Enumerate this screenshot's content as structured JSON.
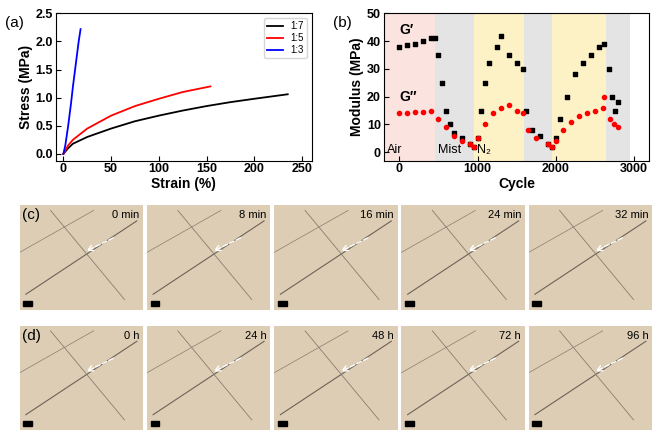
{
  "chart_data": [
    {
      "type": "line",
      "panel_label": "(a)",
      "x_label": "Strain (%)",
      "y_label": "Stress (MPa)",
      "xlim": [
        -8,
        260
      ],
      "xticks": [
        0,
        50,
        100,
        150,
        200,
        250
      ],
      "ylim": [
        -0.12,
        2.5
      ],
      "yticks": [
        {
          "value": 0,
          "label": "0.0"
        },
        {
          "value": 0.5,
          "label": "0.5"
        },
        {
          "value": 1,
          "label": "1.0"
        },
        {
          "value": 1.5,
          "label": "1.5"
        },
        {
          "value": 2,
          "label": "2.0"
        },
        {
          "value": 2.5,
          "label": "2.5"
        }
      ],
      "legend": "upper right",
      "series": [
        {
          "name": "1:7",
          "color": "#000000",
          "x": [
            0,
            5,
            10,
            25,
            50,
            75,
            100,
            125,
            150,
            175,
            200,
            235
          ],
          "values": [
            0,
            0.1,
            0.18,
            0.3,
            0.45,
            0.58,
            0.68,
            0.77,
            0.85,
            0.92,
            0.98,
            1.06
          ]
        },
        {
          "name": "1:5",
          "color": "#ff0000",
          "x": [
            0,
            5,
            10,
            25,
            50,
            75,
            100,
            125,
            154
          ],
          "values": [
            0,
            0.15,
            0.25,
            0.45,
            0.68,
            0.85,
            0.98,
            1.1,
            1.2
          ]
        },
        {
          "name": "1:3",
          "color": "#0000ff",
          "x": [
            0,
            2,
            5,
            8,
            10,
            13,
            16,
            18
          ],
          "values": [
            0,
            0.15,
            0.5,
            0.9,
            1.2,
            1.6,
            2.0,
            2.22
          ]
        }
      ]
    },
    {
      "type": "scatter",
      "panel_label": "(b)",
      "x_label": "Cycle",
      "y_label": "Modulus (MPa)",
      "xlim": [
        -200,
        3200
      ],
      "xticks": [
        0,
        1000,
        2000,
        3000
      ],
      "ylim": [
        -3,
        50
      ],
      "yticks": [
        0,
        10,
        20,
        30,
        40,
        50
      ],
      "regions": [
        {
          "start": -200,
          "end": 450,
          "label": "Air",
          "color": "#fbe4e0"
        },
        {
          "start": 450,
          "end": 950,
          "label": "Mist",
          "color": "#e4e4e4"
        },
        {
          "start": 950,
          "end": 1600,
          "label": "N₂",
          "color": "#fdf2c6"
        },
        {
          "start": 1600,
          "end": 1950,
          "label": null,
          "color": "#e4e4e4"
        },
        {
          "start": 1950,
          "end": 2650,
          "label": null,
          "color": "#fdf2c6"
        },
        {
          "start": 2650,
          "end": 2950,
          "label": null,
          "color": "#e4e4e4"
        }
      ],
      "series": [
        {
          "name": "G′",
          "color": "#000000",
          "marker": "square",
          "x": [
            0,
            100,
            200,
            300,
            400,
            450,
            500,
            550,
            600,
            650,
            700,
            800,
            900,
            950,
            1000,
            1050,
            1100,
            1150,
            1250,
            1300,
            1400,
            1500,
            1580,
            1620,
            1700,
            1800,
            1900,
            1950,
            2000,
            2050,
            2150,
            2250,
            2350,
            2450,
            2550,
            2620,
            2680,
            2720,
            2760,
            2800
          ],
          "values": [
            38,
            38.5,
            39,
            40,
            41,
            41,
            35,
            25,
            15,
            10,
            7,
            5,
            3,
            2,
            5,
            15,
            25,
            32,
            38,
            42,
            35,
            32,
            30,
            15,
            8,
            6,
            3,
            2,
            5,
            12,
            20,
            28,
            32,
            35,
            38,
            39,
            30,
            20,
            15,
            18
          ]
        },
        {
          "name": "G″",
          "color": "#ff0000",
          "marker": "circle",
          "x": [
            0,
            100,
            200,
            300,
            400,
            500,
            600,
            700,
            800,
            900,
            950,
            1000,
            1100,
            1200,
            1300,
            1400,
            1500,
            1580,
            1650,
            1750,
            1900,
            1950,
            2000,
            2100,
            2200,
            2300,
            2400,
            2500,
            2600,
            2620,
            2700,
            2750,
            2800
          ],
          "values": [
            14,
            14,
            14.5,
            14.5,
            15,
            12,
            9,
            6,
            4,
            3,
            2,
            5,
            10,
            14,
            16,
            17,
            15,
            14,
            8,
            5,
            3,
            2,
            4,
            8,
            11,
            13,
            14,
            15,
            16,
            20,
            12,
            10,
            9
          ]
        }
      ]
    }
  ],
  "image_panels": [
    {
      "label": "(c)",
      "frames": [
        "0 min",
        "8 min",
        "16 min",
        "24 min",
        "32 min"
      ]
    },
    {
      "label": "(d)",
      "frames": [
        "0 h",
        "24 h",
        "48 h",
        "72 h",
        "96 h"
      ]
    }
  ]
}
